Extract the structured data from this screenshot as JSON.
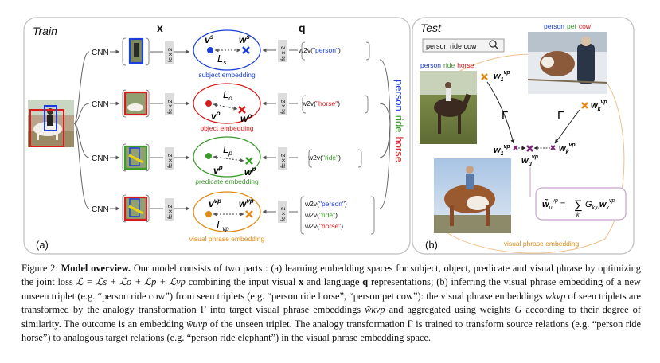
{
  "train": {
    "title": "Train",
    "label_a": "(a)",
    "x_header": "x",
    "q_header": "q",
    "cnn_label": "CNN",
    "fc_label": "fc x 2",
    "rows": [
      {
        "embedding": "subject embedding",
        "v": "v",
        "v_sup": "s",
        "w": "w",
        "w_sup": "s",
        "loss": "L",
        "loss_sub": "s",
        "w2v": [
          "w2v(\"person\")"
        ],
        "color": "#1b3fd8"
      },
      {
        "embedding": "object embedding",
        "v": "v",
        "v_sup": "o",
        "w": "w",
        "w_sup": "o",
        "loss": "L",
        "loss_sub": "o",
        "w2v": [
          "w2v(\"horse\")"
        ],
        "color": "#d81b1b"
      },
      {
        "embedding": "predicate embedding",
        "v": "v",
        "v_sup": "p",
        "w": "w",
        "w_sup": "p",
        "loss": "L",
        "loss_sub": "p",
        "w2v": [
          "w2v(\"ride\")"
        ],
        "color": "#3a9a2a"
      },
      {
        "embedding": "visual phrase embedding",
        "v": "v",
        "v_sup": "vp",
        "w": "w",
        "w_sup": "vp",
        "loss": "L",
        "loss_sub": "vp",
        "w2v": [
          "w2v(\"person\")",
          "w2v(\"ride\")",
          "w2v(\"horse\")"
        ],
        "color": "#e08a14"
      }
    ],
    "side_label": {
      "person": "person",
      "ride": "ride",
      "horse": "horse"
    }
  },
  "test": {
    "title": "Test",
    "label_b": "(b)",
    "search_text": "person ride cow",
    "img1_caption": {
      "a": "person",
      "b": "ride",
      "c": "horse"
    },
    "img2_caption": {
      "a": "person",
      "b": "pet",
      "c": "cow"
    },
    "gamma": "Γ",
    "w1": "w",
    "w1_sub": "1",
    "wk": "w",
    "wk_sub": "k",
    "wu": "w",
    "wu_sub": "u",
    "sup_vp": "vp",
    "formula_lhs": "w̃",
    "formula_rhs": "G",
    "formula_sub": "k,u",
    "sum_sym": "∑",
    "sum_idx": "k",
    "embedding_label": "visual phrase embedding"
  },
  "colors": {
    "subject": "#1b3fd8",
    "object": "#d81b1b",
    "predicate": "#3a9a2a",
    "vp": "#e08a14",
    "target": "#7a2a7a"
  },
  "caption": {
    "fig": "Figure 2:",
    "bold": "Model overview.",
    "p1": " Our model consists of two parts : (a) learning embedding spaces for subject, object, predicate and visual phrase by optimizing the joint loss ",
    "loss_eq": "ℒ = ℒs + ℒo + ℒp + ℒvp",
    "p2": " combining the input visual ",
    "x": "x",
    "p3": " and language ",
    "q": "q",
    "p4": " representations; (b) inferring the visual phrase embedding of a new unseen triplet (e.g. “person ride cow”) from seen triplets (e.g. “person ride horse”, “person pet cow”): the visual phrase embeddings ",
    "wk": "wkvp",
    "p5": " of seen triplets are transformed by the analogy transformation Γ into target visual phrase embeddings ",
    "wtk": "w̃kvp",
    "p6": " and aggregated using weights ",
    "G": "G",
    "p7": " according to their degree of similarity. The outcome is an embedding ",
    "wu": "w̃uvp",
    "p8": " of the unseen triplet. The analogy transformation Γ is trained to transform source relations (e.g. “person ride horse”) to analogous target relations (e.g. “person ride elephant”) in the visual phrase embedding space."
  }
}
